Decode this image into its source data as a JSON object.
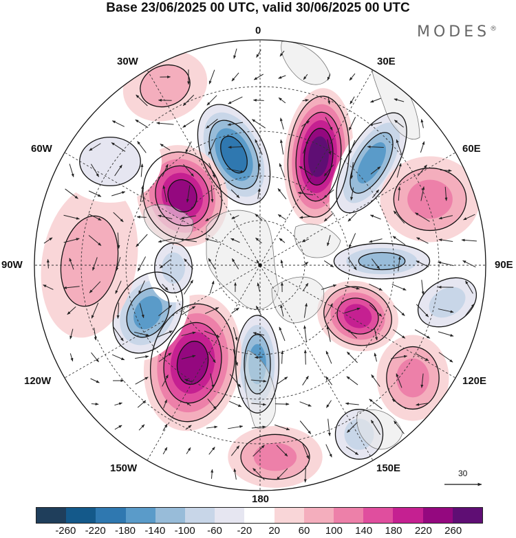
{
  "title": "Base 23/06/2025 00 UTC, valid 30/06/2025 00 UTC",
  "brand": {
    "name": "MODES",
    "mark": "®"
  },
  "longitude_labels": [
    "0",
    "30E",
    "60E",
    "90E",
    "120E",
    "150E",
    "180",
    "150W",
    "120W",
    "90W",
    "60W",
    "30W"
  ],
  "vector_scale": {
    "value": "30"
  },
  "colorbar": {
    "colors": [
      "#1f3e5b",
      "#14598a",
      "#2f78b0",
      "#5a9bc9",
      "#98bcd9",
      "#c8d6e8",
      "#e6e6f1",
      "#ffffff",
      "#f9d6d8",
      "#f4aebd",
      "#ed80a9",
      "#e04e9e",
      "#c52091",
      "#94087f",
      "#5f0e74"
    ],
    "tick_labels": [
      "-260",
      "-220",
      "-180",
      "-140",
      "-100",
      "-60",
      "-20",
      "20",
      "60",
      "100",
      "140",
      "180",
      "220",
      "260"
    ]
  },
  "anomaly_centers": [
    {
      "sign": "negative",
      "value": -240,
      "near_lon": "0"
    },
    {
      "sign": "positive",
      "value": 260,
      "near_lon": "30E"
    },
    {
      "sign": "negative",
      "value": -200,
      "near_lon": "45E"
    },
    {
      "sign": "positive",
      "value": 130,
      "near_lon": "60E"
    },
    {
      "sign": "negative",
      "value": -170,
      "near_lon": "90E"
    },
    {
      "sign": "negative",
      "value": -120,
      "near_lon": "100E"
    },
    {
      "sign": "positive",
      "value": 180,
      "near_lon": "120E"
    },
    {
      "sign": "positive",
      "value": 130,
      "near_lon": "130E"
    },
    {
      "sign": "negative",
      "value": -120,
      "near_lon": "150E"
    },
    {
      "sign": "positive",
      "value": 100,
      "near_lon": "180"
    },
    {
      "sign": "negative",
      "value": -190,
      "near_lon": "165W"
    },
    {
      "sign": "positive",
      "value": 250,
      "near_lon": "145W"
    },
    {
      "sign": "negative",
      "value": -200,
      "near_lon": "120W"
    },
    {
      "sign": "negative",
      "value": -130,
      "near_lon": "100W"
    },
    {
      "sign": "positive",
      "value": 70,
      "near_lon": "90W"
    },
    {
      "sign": "positive",
      "value": 250,
      "near_lon": "40W"
    },
    {
      "sign": "negative",
      "value": -80,
      "near_lon": "60W"
    },
    {
      "sign": "positive",
      "value": 90,
      "near_lon": "20W"
    }
  ]
}
